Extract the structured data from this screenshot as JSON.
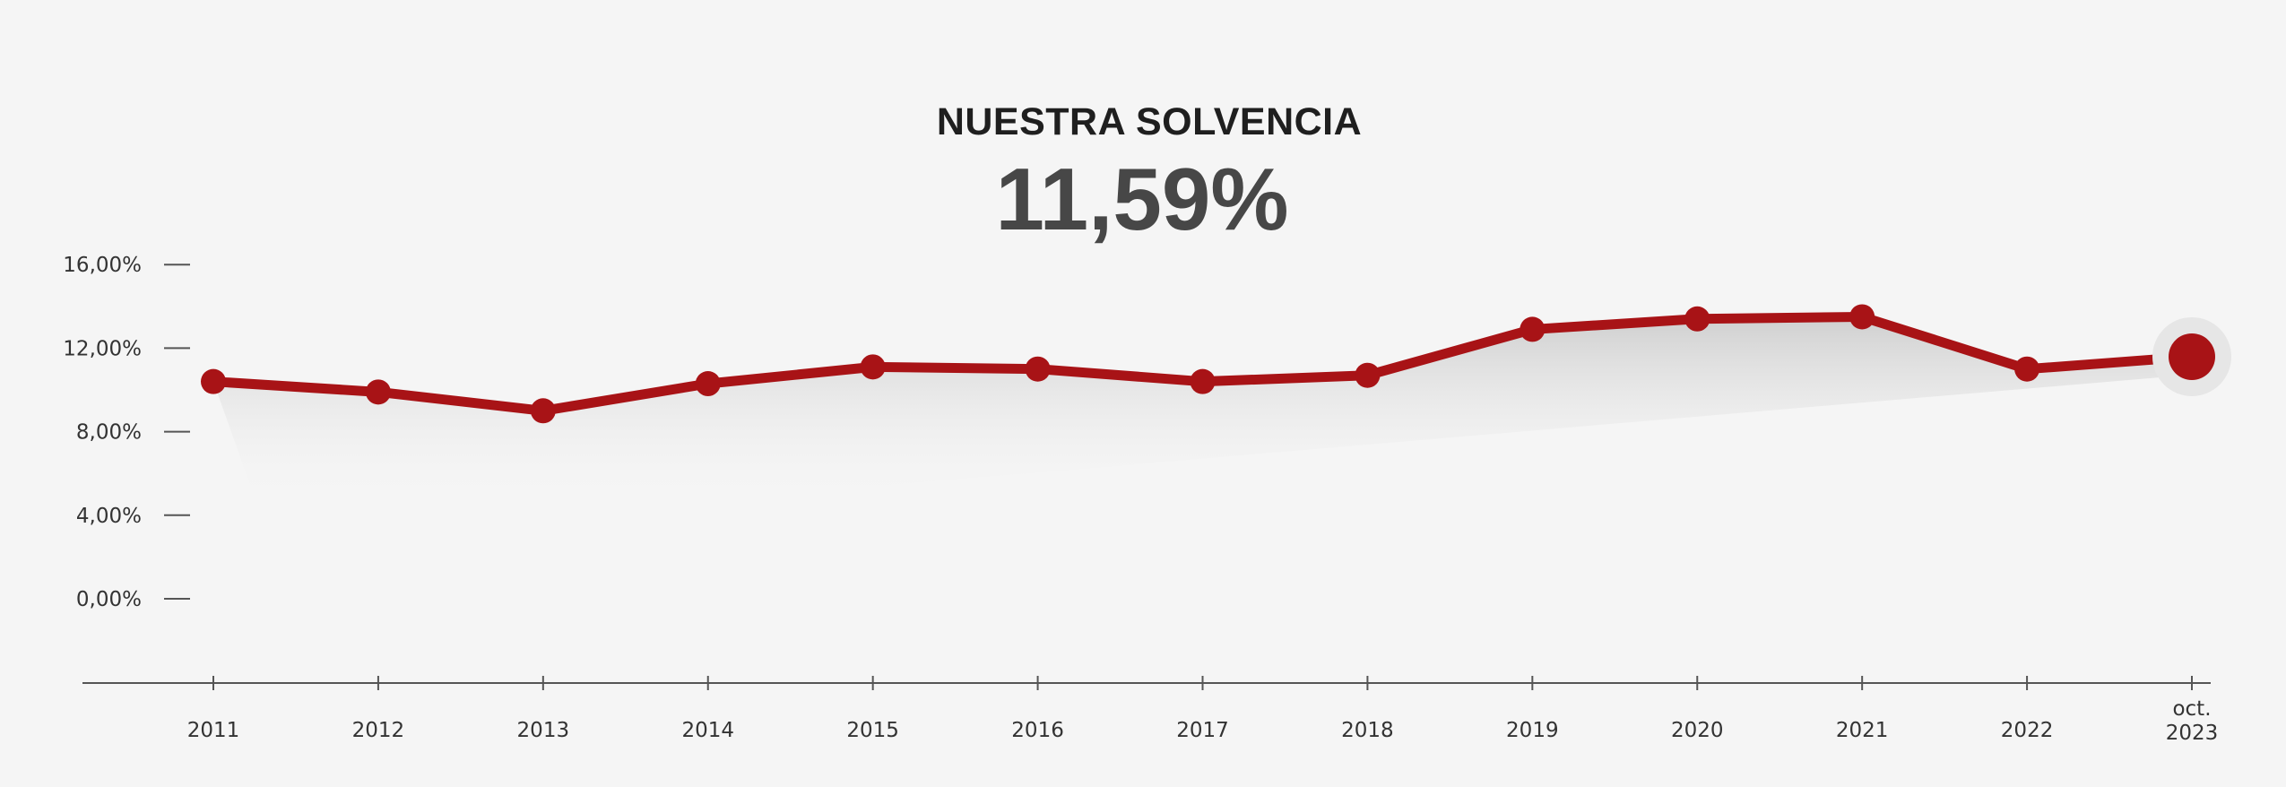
{
  "chart_data": {
    "type": "line",
    "title": "NUESTRA SOLVENCIA",
    "headline_value": "11,59%",
    "x": [
      "2011",
      "2012",
      "2013",
      "2014",
      "2015",
      "2016",
      "2017",
      "2018",
      "2019",
      "2020",
      "2021",
      "2022",
      "oct. 2023"
    ],
    "x_tick_labels": [
      [
        "2011"
      ],
      [
        "2012"
      ],
      [
        "2013"
      ],
      [
        "2014"
      ],
      [
        "2015"
      ],
      [
        "2016"
      ],
      [
        "2017"
      ],
      [
        "2018"
      ],
      [
        "2019"
      ],
      [
        "2020"
      ],
      [
        "2021"
      ],
      [
        "2022"
      ],
      [
        "oct.",
        "2023"
      ]
    ],
    "series": [
      {
        "values": [
          10.4,
          9.9,
          9.0,
          10.3,
          11.1,
          11.0,
          10.4,
          10.7,
          12.9,
          13.4,
          13.5,
          11.0,
          11.59
        ]
      }
    ],
    "y_ticks": [
      "16,00%",
      "12,00%",
      "8,00%",
      "4,00%",
      "0,00%"
    ],
    "y_tick_values": [
      16,
      12,
      8,
      4,
      0
    ],
    "ylim": [
      0,
      16
    ],
    "grid": false,
    "colors": {
      "line": "#a81316",
      "background": "#f5f5f5",
      "axis": "#555555",
      "area_shadow": "#c8c8c8",
      "highlight_halo": "#e6e6e6"
    }
  }
}
